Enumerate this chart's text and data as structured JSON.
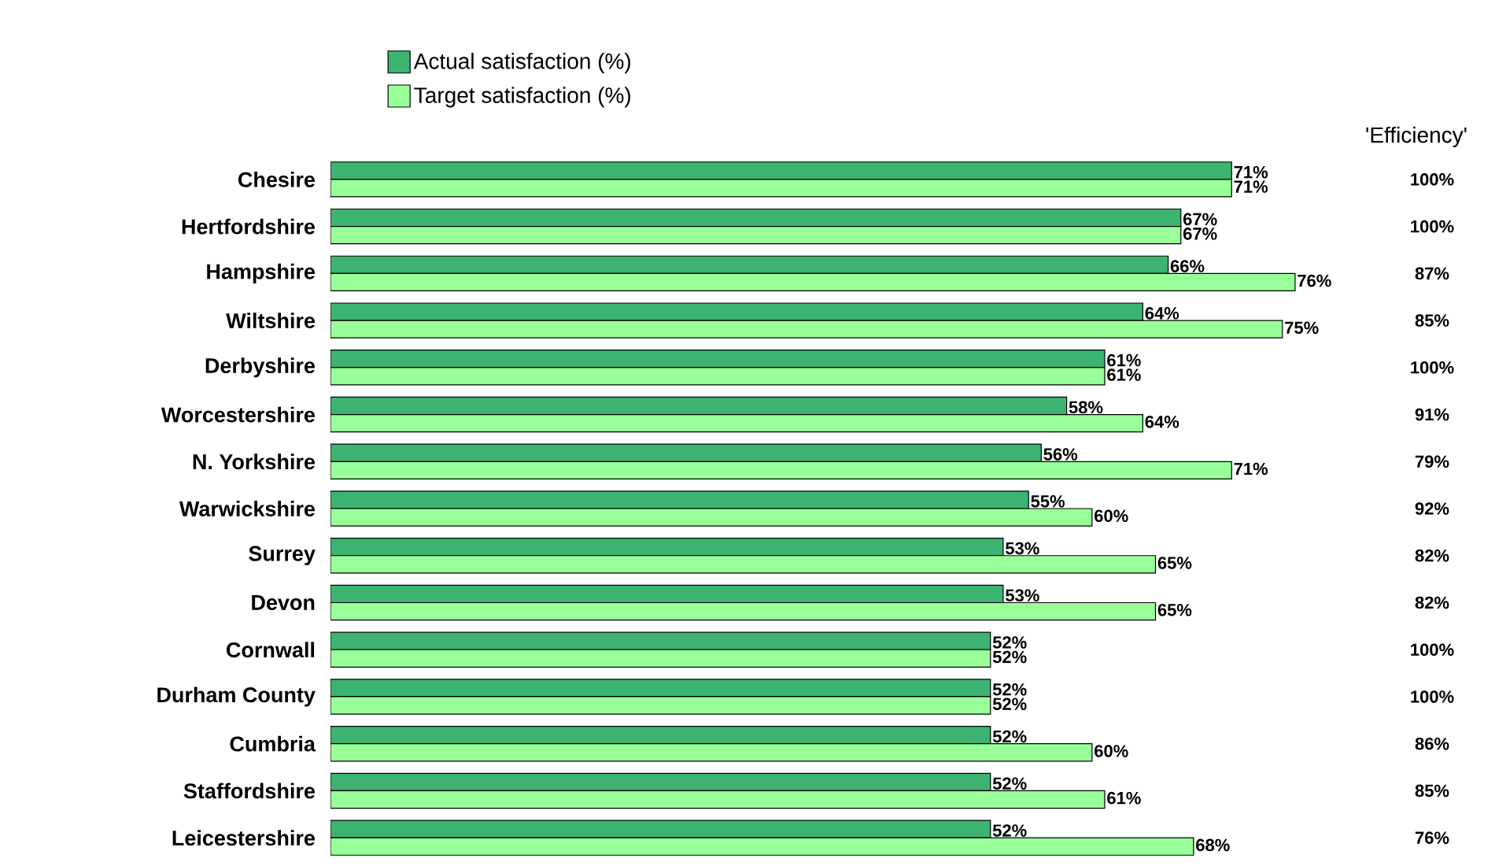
{
  "chart_data": {
    "type": "bar",
    "orientation": "horizontal",
    "categories": [
      "Chesire",
      "Hertfordshire",
      "Hampshire",
      "Wiltshire",
      "Derbyshire",
      "Worcestershire",
      "N. Yorkshire",
      "Warwickshire",
      "Surrey",
      "Devon",
      "Cornwall",
      "Durham County",
      "Cumbria",
      "Staffordshire",
      "Leicestershire"
    ],
    "series": [
      {
        "name": "Actual satisfaction (%)",
        "color": "#3cb371",
        "values": [
          71,
          67,
          66,
          64,
          61,
          58,
          56,
          55,
          53,
          53,
          52,
          52,
          52,
          52,
          52
        ],
        "value_labels": [
          "71%",
          "67%",
          "66%",
          "64%",
          "61%",
          "58%",
          "56%",
          "55%",
          "53%",
          "53%",
          "52%",
          "52%",
          "52%",
          "52%",
          "52%"
        ]
      },
      {
        "name": "Target satisfaction (%)",
        "color": "#99ff99",
        "values": [
          71,
          67,
          76,
          75,
          61,
          64,
          71,
          60,
          65,
          65,
          52,
          52,
          60,
          61,
          68
        ],
        "value_labels": [
          "71%",
          "67%",
          "76%",
          "75%",
          "61%",
          "64%",
          "71%",
          "60%",
          "65%",
          "65%",
          "52%",
          "52%",
          "60%",
          "61%",
          "68%"
        ]
      }
    ],
    "annotations": [
      "'Efficiency'",
      "100%",
      "100%",
      "87%",
      "85%",
      "100%",
      "91%",
      "79%",
      "92%",
      "82%",
      "82%",
      "100%",
      "100%",
      "86%",
      "85%",
      "76%"
    ],
    "legend": "top",
    "tick_labels": "y"
  }
}
